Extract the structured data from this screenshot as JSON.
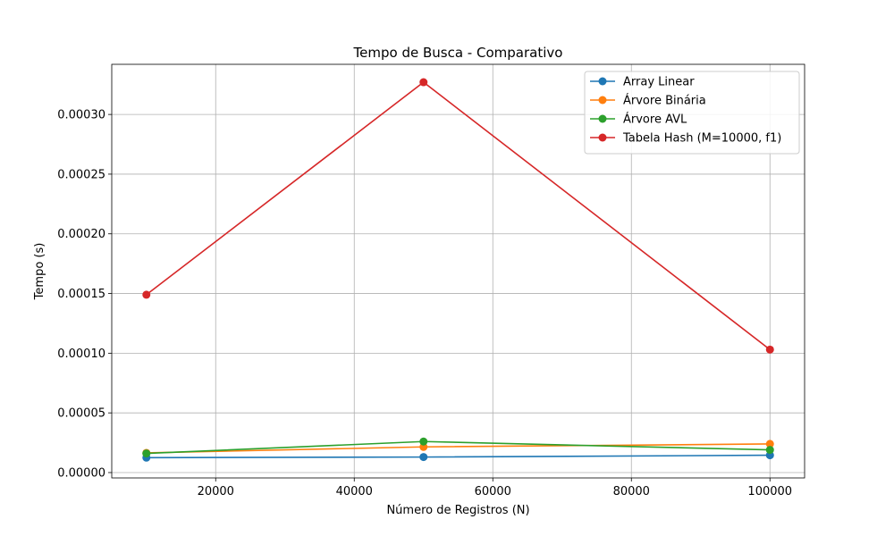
{
  "chart_data": {
    "type": "line",
    "title": "Tempo de Busca - Comparativo",
    "xlabel": "Número de Registros (N)",
    "ylabel": "Tempo (s)",
    "x": [
      10000,
      50000,
      100000
    ],
    "xlim": [
      5000,
      105000
    ],
    "ylim": [
      -4.5e-06,
      0.000342
    ],
    "xticks": [
      20000,
      40000,
      60000,
      80000,
      100000
    ],
    "xtick_labels": [
      "20000",
      "40000",
      "60000",
      "80000",
      "100000"
    ],
    "yticks": [
      0,
      5e-05,
      0.0001,
      0.00015,
      0.0002,
      0.00025,
      0.0003
    ],
    "ytick_labels": [
      "0.00000",
      "0.00005",
      "0.00010",
      "0.00015",
      "0.00020",
      "0.00025",
      "0.00030"
    ],
    "grid": true,
    "legend_position": "top-right",
    "series": [
      {
        "name": "Array Linear",
        "color": "#1f77b4",
        "values": [
          1.25e-05,
          1.3e-05,
          1.45e-05
        ]
      },
      {
        "name": "Árvore Binária",
        "color": "#ff7f0e",
        "values": [
          1.65e-05,
          2.15e-05,
          2.4e-05
        ]
      },
      {
        "name": "Árvore AVL",
        "color": "#2ca02c",
        "values": [
          1.6e-05,
          2.6e-05,
          1.9e-05
        ]
      },
      {
        "name": "Tabela Hash (M=10000, f1)",
        "color": "#d62728",
        "values": [
          0.000149,
          0.000327,
          0.000103
        ]
      }
    ]
  }
}
